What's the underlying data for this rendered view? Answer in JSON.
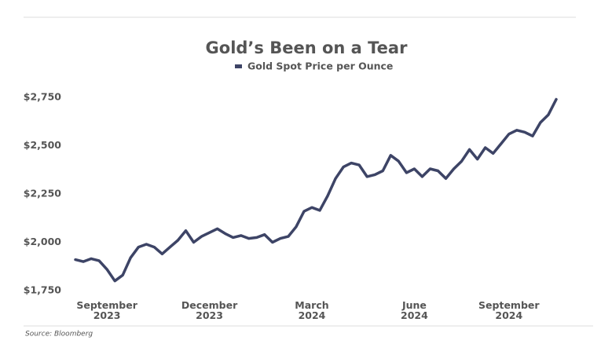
{
  "chart_data": {
    "type": "line",
    "title": "Gold’s Been on a Tear",
    "source": "Source: Bloomberg",
    "categories": [
      null,
      null,
      null,
      null,
      "September 2023",
      null,
      null,
      null,
      null,
      null,
      null,
      null,
      null,
      null,
      null,
      null,
      null,
      "December 2023",
      null,
      null,
      null,
      null,
      null,
      null,
      null,
      null,
      null,
      null,
      null,
      null,
      "March 2024",
      null,
      null,
      null,
      null,
      null,
      null,
      null,
      null,
      null,
      null,
      null,
      null,
      "June 2024",
      null,
      null,
      null,
      null,
      null,
      null,
      null,
      null,
      null,
      null,
      null,
      "September 2024",
      null,
      null,
      null,
      null,
      null,
      null
    ],
    "series": [
      {
        "name": "Gold Spot Price per Ounce",
        "color": "#3d4466",
        "values": [
          1910,
          1900,
          1915,
          1905,
          1860,
          1800,
          1830,
          1920,
          1975,
          1990,
          1975,
          1940,
          1975,
          2010,
          2060,
          2000,
          2030,
          2050,
          2070,
          2045,
          2025,
          2035,
          2020,
          2025,
          2040,
          2000,
          2020,
          2030,
          2080,
          2160,
          2180,
          2165,
          2240,
          2330,
          2390,
          2410,
          2400,
          2340,
          2350,
          2370,
          2450,
          2420,
          2360,
          2380,
          2340,
          2380,
          2370,
          2330,
          2380,
          2420,
          2480,
          2430,
          2490,
          2460,
          2510,
          2560,
          2580,
          2570,
          2550,
          2620,
          2660,
          2740
        ]
      }
    ],
    "ylim": [
      1750,
      2750
    ],
    "yticks": [
      {
        "value": 1750,
        "label": "$1,750"
      },
      {
        "value": 2000,
        "label": "$2,000"
      },
      {
        "value": 2250,
        "label": "$2,250"
      },
      {
        "value": 2500,
        "label": "$2,500"
      },
      {
        "value": 2750,
        "label": "$2,750"
      }
    ]
  }
}
